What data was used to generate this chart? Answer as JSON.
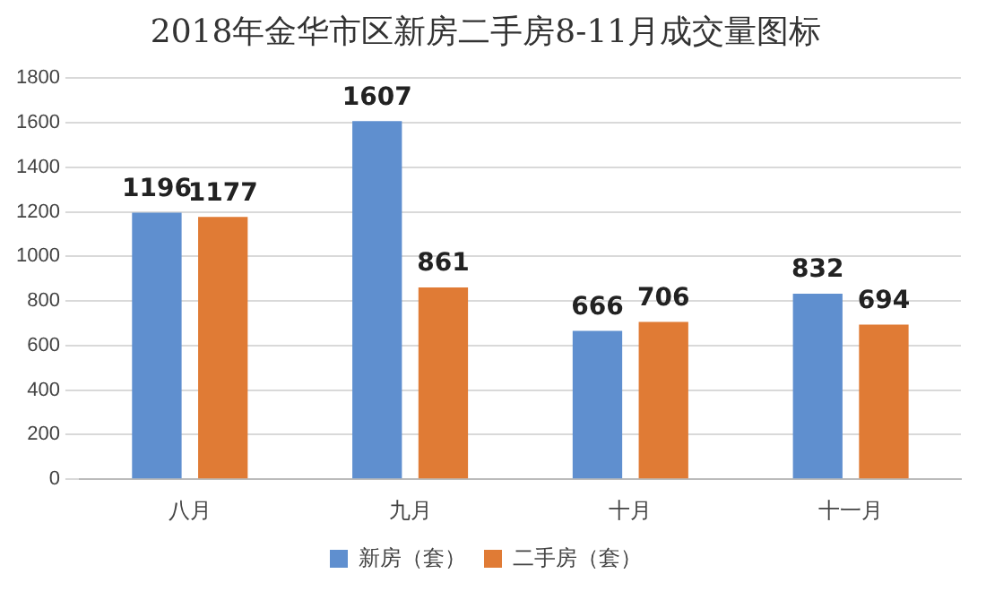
{
  "chart_data": {
    "type": "bar",
    "title": "2018年金华市区新房二手房8-11月成交量图标",
    "categories": [
      "八月",
      "九月",
      "十月",
      "十一月"
    ],
    "series": [
      {
        "name": "新房（套）",
        "color": "#5f8fcf",
        "values": [
          1196,
          1607,
          666,
          832
        ]
      },
      {
        "name": "二手房（套）",
        "color": "#e07b35",
        "values": [
          1177,
          861,
          706,
          694
        ]
      }
    ],
    "ylim": [
      0,
      1800
    ],
    "yticks": [
      0,
      200,
      400,
      600,
      800,
      1000,
      1200,
      1400,
      1600,
      1800
    ],
    "grid": "y",
    "legend": "bottom",
    "data_labels": true
  }
}
